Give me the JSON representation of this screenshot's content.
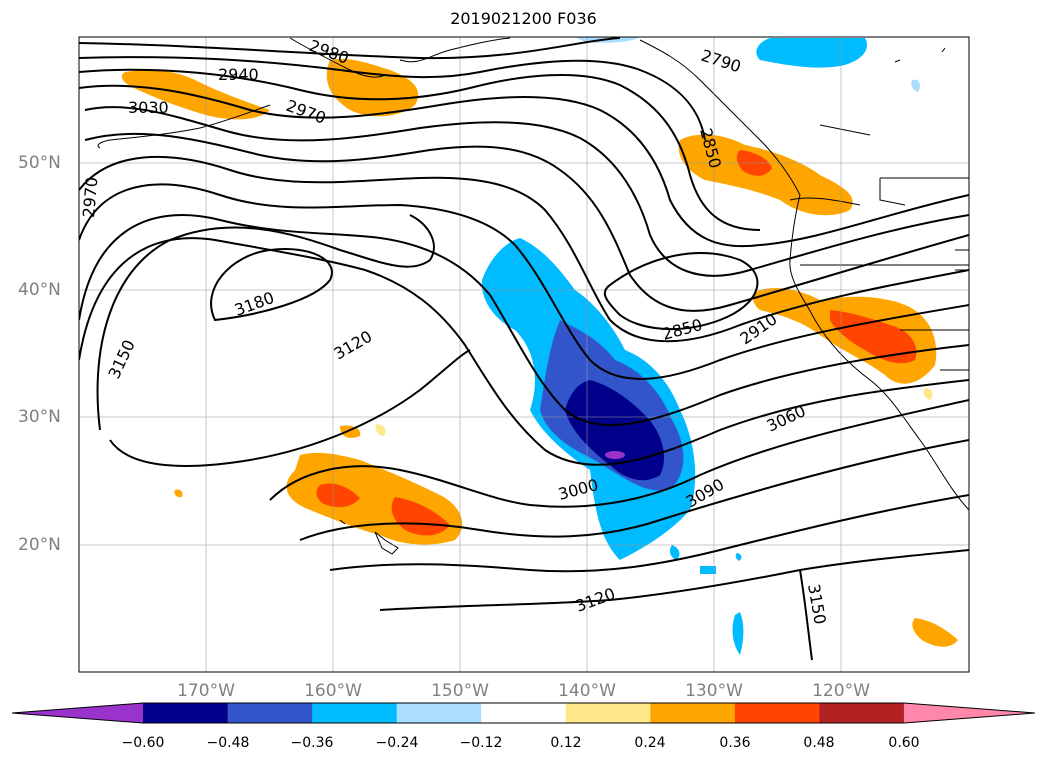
{
  "title": "2019021200 F036",
  "latitude_labels": [
    "50°N",
    "40°N",
    "30°N",
    "20°N"
  ],
  "longitude_labels": [
    "170°W",
    "160°W",
    "150°W",
    "140°W",
    "130°W",
    "120°W"
  ],
  "contour_labels": [
    "2940",
    "2980",
    "2790",
    "3030",
    "2970",
    "2850",
    "2970",
    "3180",
    "3120",
    "2850",
    "2910",
    "3150",
    "3060",
    "3000",
    "3090",
    "3120",
    "3150"
  ],
  "colorbar": {
    "ticks": [
      "−0.60",
      "−0.48",
      "−0.36",
      "−0.24",
      "−0.12",
      "0.12",
      "0.24",
      "0.36",
      "0.48",
      "0.60"
    ],
    "colors": [
      "#9933cc",
      "#00008b",
      "#3355cc",
      "#00bbff",
      "#aaddff",
      "#ffffff",
      "#ffe88a",
      "#ffa500",
      "#ff4500",
      "#b22222",
      "#ff88aa"
    ]
  }
}
